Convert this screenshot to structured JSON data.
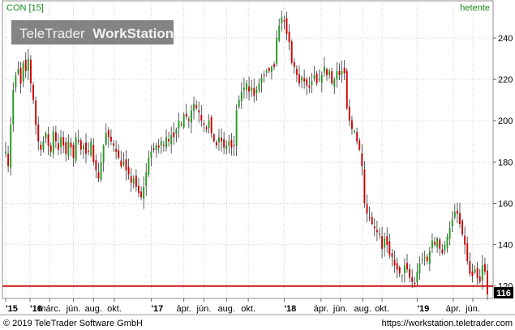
{
  "header": {
    "symbol_label": "CON [15]",
    "period_label": "hetente",
    "watermark_brand": "TeleTrader",
    "watermark_product": "WorkStation"
  },
  "footer": {
    "copyright": "© 2019 TeleTrader Software GmbH",
    "url": "https://workstation.teletrader.com"
  },
  "chart_data": {
    "type": "candlestick",
    "title": "",
    "xlabel": "",
    "ylabel": "",
    "y_axis_position": "right",
    "ylim": [
      114,
      258
    ],
    "yticks": [
      120,
      140,
      160,
      180,
      200,
      220,
      240
    ],
    "grid": true,
    "x_ticks": [
      {
        "label": "'15",
        "t": 0.0
      },
      {
        "label": "'16",
        "t": 9.7
      },
      {
        "label": "márc.",
        "t": 17.5
      },
      {
        "label": "jún.",
        "t": 27.0
      },
      {
        "label": "aug.",
        "t": 35.0
      },
      {
        "label": "okt.",
        "t": 43.3
      },
      {
        "label": "'17",
        "t": 58.0
      },
      {
        "label": "ápr.",
        "t": 71.0
      },
      {
        "label": "jún.",
        "t": 79.0
      },
      {
        "label": "aug.",
        "t": 88.0
      },
      {
        "label": "okt.",
        "t": 96.7
      },
      {
        "label": "'18",
        "t": 111.0
      },
      {
        "label": "ápr.",
        "t": 125.7
      },
      {
        "label": "jún.",
        "t": 133.4
      },
      {
        "label": "aug.",
        "t": 142.3
      },
      {
        "label": "okt.",
        "t": 150.0
      },
      {
        "label": "'19",
        "t": 164.0
      },
      {
        "label": "ápr.",
        "t": 178.4
      },
      {
        "label": "jún.",
        "t": 186.2
      }
    ],
    "close_path": [
      [
        0,
        185
      ],
      [
        1,
        178
      ],
      [
        2,
        198
      ],
      [
        3,
        215
      ],
      [
        4,
        222
      ],
      [
        5,
        225
      ],
      [
        6,
        218
      ],
      [
        7,
        228
      ],
      [
        8,
        224
      ],
      [
        9,
        230
      ],
      [
        10,
        218
      ],
      [
        11,
        210
      ],
      [
        12,
        198
      ],
      [
        13,
        190
      ],
      [
        14,
        186
      ],
      [
        15,
        190
      ],
      [
        16,
        194
      ],
      [
        17,
        188
      ],
      [
        18,
        185
      ],
      [
        19,
        195
      ],
      [
        20,
        190
      ],
      [
        21,
        186
      ],
      [
        22,
        192
      ],
      [
        23,
        188
      ],
      [
        24,
        184
      ],
      [
        25,
        190
      ],
      [
        26,
        187
      ],
      [
        27,
        182
      ],
      [
        28,
        192
      ],
      [
        29,
        190
      ],
      [
        30,
        186
      ],
      [
        31,
        188
      ],
      [
        32,
        184
      ],
      [
        33,
        185
      ],
      [
        34,
        190
      ],
      [
        35,
        180
      ],
      [
        36,
        176
      ],
      [
        37,
        172
      ],
      [
        38,
        180
      ],
      [
        39,
        188
      ],
      [
        40,
        194
      ],
      [
        41,
        192
      ],
      [
        42,
        190
      ],
      [
        43,
        188
      ],
      [
        44,
        185
      ],
      [
        45,
        182
      ],
      [
        46,
        178
      ],
      [
        47,
        180
      ],
      [
        48,
        176
      ],
      [
        49,
        174
      ],
      [
        50,
        170
      ],
      [
        51,
        172
      ],
      [
        52,
        168
      ],
      [
        53,
        165
      ],
      [
        54,
        163
      ],
      [
        55,
        168
      ],
      [
        56,
        175
      ],
      [
        57,
        182
      ],
      [
        58,
        185
      ],
      [
        59,
        186
      ],
      [
        60,
        188
      ],
      [
        61,
        187
      ],
      [
        62,
        190
      ],
      [
        63,
        188
      ],
      [
        64,
        192
      ],
      [
        65,
        190
      ],
      [
        66,
        193
      ],
      [
        67,
        192
      ],
      [
        68,
        196
      ],
      [
        69,
        200
      ],
      [
        70,
        198
      ],
      [
        71,
        203
      ],
      [
        72,
        202
      ],
      [
        73,
        200
      ],
      [
        74,
        205
      ],
      [
        75,
        208
      ],
      [
        76,
        206
      ],
      [
        77,
        204
      ],
      [
        78,
        200
      ],
      [
        79,
        198
      ],
      [
        80,
        196
      ],
      [
        81,
        200
      ],
      [
        82,
        194
      ],
      [
        83,
        190
      ],
      [
        84,
        188
      ],
      [
        85,
        192
      ],
      [
        86,
        190
      ],
      [
        87,
        187
      ],
      [
        88,
        188
      ],
      [
        89,
        190
      ],
      [
        90,
        187
      ],
      [
        91,
        188
      ],
      [
        92,
        205
      ],
      [
        93,
        210
      ],
      [
        94,
        214
      ],
      [
        95,
        216
      ],
      [
        96,
        218
      ],
      [
        97,
        214
      ],
      [
        98,
        216
      ],
      [
        99,
        212
      ],
      [
        100,
        215
      ],
      [
        101,
        218
      ],
      [
        102,
        221
      ],
      [
        103,
        222
      ],
      [
        104,
        224
      ],
      [
        105,
        224
      ],
      [
        106,
        226
      ],
      [
        107,
        226
      ],
      [
        108,
        240
      ],
      [
        109,
        246
      ],
      [
        110,
        250
      ],
      [
        111,
        248
      ],
      [
        112,
        242
      ],
      [
        113,
        238
      ],
      [
        114,
        228
      ],
      [
        115,
        226
      ],
      [
        116,
        222
      ],
      [
        117,
        218
      ],
      [
        118,
        221
      ],
      [
        119,
        219
      ],
      [
        120,
        217
      ],
      [
        121,
        216
      ],
      [
        122,
        219
      ],
      [
        123,
        222
      ],
      [
        124,
        218
      ],
      [
        125,
        220
      ],
      [
        126,
        222
      ],
      [
        127,
        226
      ],
      [
        128,
        222
      ],
      [
        129,
        224
      ],
      [
        130,
        218
      ],
      [
        131,
        220
      ],
      [
        132,
        224
      ],
      [
        133,
        222
      ],
      [
        134,
        224
      ],
      [
        135,
        223
      ],
      [
        136,
        206
      ],
      [
        137,
        200
      ],
      [
        138,
        196
      ],
      [
        139,
        195
      ],
      [
        140,
        190
      ],
      [
        141,
        186
      ],
      [
        142,
        178
      ],
      [
        143,
        160
      ],
      [
        144,
        155
      ],
      [
        145,
        153
      ],
      [
        146,
        150
      ],
      [
        147,
        148
      ],
      [
        148,
        146
      ],
      [
        149,
        145
      ],
      [
        150,
        138
      ],
      [
        151,
        143
      ],
      [
        152,
        140
      ],
      [
        153,
        135
      ],
      [
        154,
        134
      ],
      [
        155,
        130
      ],
      [
        156,
        128
      ],
      [
        157,
        126
      ],
      [
        158,
        125
      ],
      [
        159,
        130
      ],
      [
        160,
        128
      ],
      [
        161,
        124
      ],
      [
        162,
        122
      ],
      [
        163,
        121
      ],
      [
        164,
        127
      ],
      [
        165,
        131
      ],
      [
        166,
        133
      ],
      [
        167,
        134
      ],
      [
        168,
        132
      ],
      [
        169,
        137
      ],
      [
        170,
        142
      ],
      [
        171,
        140
      ],
      [
        172,
        143
      ],
      [
        173,
        138
      ],
      [
        174,
        136
      ],
      [
        175,
        140
      ],
      [
        176,
        144
      ],
      [
        177,
        148
      ],
      [
        178,
        152
      ],
      [
        179,
        156
      ],
      [
        180,
        155
      ],
      [
        181,
        150
      ],
      [
        182,
        145
      ],
      [
        183,
        140
      ],
      [
        184,
        132
      ],
      [
        185,
        126
      ],
      [
        186,
        125
      ],
      [
        187,
        128
      ],
      [
        188,
        124
      ],
      [
        189,
        122
      ],
      [
        190,
        130
      ],
      [
        191,
        127
      ],
      [
        192,
        116
      ]
    ],
    "horizontal_line": {
      "value": 120,
      "color": "#cc0000"
    },
    "last_price": 116,
    "colors": {
      "up": "#229922",
      "down": "#cc0000",
      "wick": "#333333"
    }
  }
}
